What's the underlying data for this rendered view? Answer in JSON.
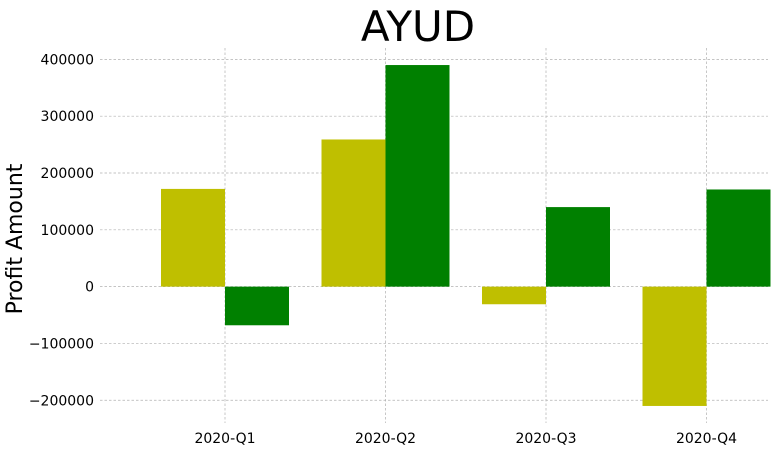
{
  "chart_data": {
    "type": "bar",
    "title": "AYUD",
    "xlabel": "",
    "ylabel": "Profit Amount",
    "categories": [
      "2020-Q1",
      "2020-Q2",
      "2020-Q3",
      "2020-Q4"
    ],
    "series": [
      {
        "color": "#bfbf00",
        "values": [
          172000,
          259000,
          -31000,
          -210000
        ]
      },
      {
        "color": "#008000",
        "values": [
          -68000,
          390000,
          140000,
          171000
        ]
      }
    ],
    "ylim": [
      -240000,
      420000
    ],
    "yticks": [
      -200000,
      -100000,
      0,
      100000,
      200000,
      300000,
      400000
    ],
    "ytick_labels": [
      "−200000",
      "−100000",
      "0",
      "100000",
      "200000",
      "300000",
      "400000"
    ],
    "grid": true,
    "legend": "none"
  }
}
